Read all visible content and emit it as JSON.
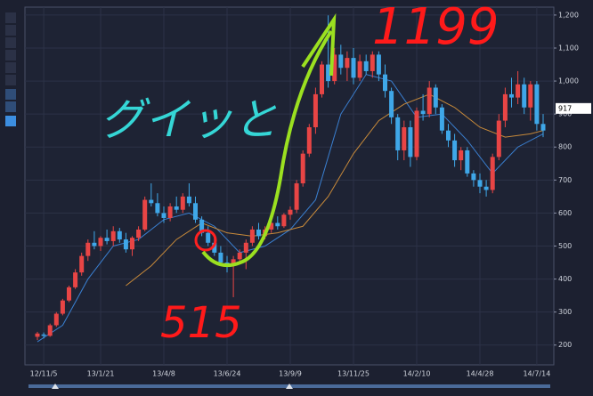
{
  "chart_data": {
    "type": "candlestick",
    "annotations": {
      "upper": "1199",
      "middle": "グイッと",
      "lower": "515"
    },
    "up_color": "#e84545",
    "down_color": "#3fa7e8",
    "ylim": [
      140,
      1224
    ],
    "yticks": [
      200,
      300,
      400,
      500,
      600,
      700,
      800,
      900,
      {
        "value": 1000,
        "label": "1,000"
      },
      {
        "value": 1100,
        "label": "1,100"
      },
      {
        "value": 1200,
        "label": "1,200"
      }
    ],
    "last_price": 917,
    "categories": [
      null,
      "12/11/5",
      null,
      null,
      null,
      null,
      null,
      null,
      null,
      null,
      "13/1/21",
      null,
      null,
      null,
      null,
      null,
      null,
      null,
      null,
      null,
      "13/4/8",
      null,
      null,
      null,
      null,
      null,
      null,
      null,
      null,
      null,
      "13/6/24",
      null,
      null,
      null,
      null,
      null,
      null,
      null,
      null,
      null,
      "13/9/9",
      null,
      null,
      null,
      null,
      null,
      null,
      null,
      null,
      null,
      "13/11/25",
      null,
      null,
      null,
      null,
      null,
      null,
      null,
      null,
      null,
      "14/2/10",
      null,
      null,
      null,
      null,
      null,
      null,
      null,
      null,
      null,
      "14/4/28",
      null,
      null,
      null,
      null,
      null,
      null,
      null,
      null,
      "14/7/14",
      null
    ],
    "ohlc": [
      [
        225,
        240,
        215,
        235
      ],
      [
        232,
        238,
        220,
        228
      ],
      [
        228,
        265,
        225,
        260
      ],
      [
        260,
        300,
        255,
        295
      ],
      [
        295,
        340,
        290,
        335
      ],
      [
        335,
        380,
        330,
        375
      ],
      [
        375,
        430,
        370,
        420
      ],
      [
        420,
        480,
        410,
        470
      ],
      [
        470,
        520,
        455,
        510
      ],
      [
        510,
        545,
        490,
        500
      ],
      [
        500,
        530,
        485,
        525
      ],
      [
        525,
        550,
        505,
        515
      ],
      [
        515,
        560,
        500,
        545
      ],
      [
        545,
        555,
        510,
        520
      ],
      [
        520,
        540,
        480,
        490
      ],
      [
        490,
        530,
        470,
        525
      ],
      [
        525,
        560,
        515,
        550
      ],
      [
        550,
        650,
        545,
        640
      ],
      [
        640,
        690,
        620,
        630
      ],
      [
        630,
        660,
        590,
        600
      ],
      [
        600,
        620,
        570,
        585
      ],
      [
        585,
        630,
        575,
        620
      ],
      [
        620,
        650,
        600,
        610
      ],
      [
        610,
        660,
        600,
        650
      ],
      [
        650,
        690,
        620,
        630
      ],
      [
        630,
        650,
        570,
        580
      ],
      [
        580,
        590,
        530,
        540
      ],
      [
        540,
        560,
        500,
        510
      ],
      [
        510,
        530,
        470,
        480
      ],
      [
        480,
        500,
        440,
        450
      ],
      [
        450,
        470,
        420,
        440
      ],
      [
        440,
        470,
        345,
        460
      ],
      [
        460,
        490,
        450,
        480
      ],
      [
        480,
        520,
        430,
        510
      ],
      [
        510,
        560,
        500,
        550
      ],
      [
        550,
        570,
        520,
        530
      ],
      [
        530,
        560,
        520,
        550
      ],
      [
        550,
        580,
        540,
        570
      ],
      [
        570,
        590,
        550,
        560
      ],
      [
        560,
        600,
        555,
        595
      ],
      [
        595,
        620,
        580,
        610
      ],
      [
        610,
        700,
        600,
        690
      ],
      [
        690,
        790,
        680,
        780
      ],
      [
        780,
        870,
        770,
        860
      ],
      [
        860,
        980,
        840,
        960
      ],
      [
        960,
        1060,
        950,
        1050
      ],
      [
        1050,
        1199,
        980,
        1000
      ],
      [
        1000,
        1100,
        990,
        1080
      ],
      [
        1080,
        1110,
        1020,
        1040
      ],
      [
        1040,
        1090,
        1000,
        1070
      ],
      [
        1070,
        1100,
        990,
        1010
      ],
      [
        1010,
        1080,
        1000,
        1060
      ],
      [
        1060,
        1080,
        1020,
        1030
      ],
      [
        1030,
        1090,
        1010,
        1080
      ],
      [
        1080,
        1090,
        1000,
        1020
      ],
      [
        1020,
        1050,
        950,
        970
      ],
      [
        970,
        980,
        870,
        890
      ],
      [
        890,
        900,
        760,
        790
      ],
      [
        790,
        880,
        760,
        860
      ],
      [
        860,
        880,
        740,
        770
      ],
      [
        770,
        920,
        760,
        910
      ],
      [
        910,
        960,
        880,
        900
      ],
      [
        900,
        1000,
        890,
        980
      ],
      [
        980,
        990,
        900,
        920
      ],
      [
        920,
        930,
        840,
        850
      ],
      [
        850,
        870,
        800,
        820
      ],
      [
        820,
        840,
        740,
        760
      ],
      [
        760,
        800,
        730,
        790
      ],
      [
        790,
        800,
        710,
        720
      ],
      [
        720,
        730,
        680,
        700
      ],
      [
        700,
        720,
        660,
        680
      ],
      [
        680,
        700,
        650,
        670
      ],
      [
        670,
        780,
        660,
        770
      ],
      [
        770,
        900,
        760,
        880
      ],
      [
        880,
        980,
        860,
        960
      ],
      [
        960,
        1010,
        920,
        950
      ],
      [
        950,
        1030,
        930,
        990
      ],
      [
        990,
        1010,
        900,
        920
      ],
      [
        920,
        1000,
        880,
        990
      ],
      [
        990,
        1000,
        850,
        870
      ],
      [
        870,
        900,
        830,
        850
      ]
    ],
    "moving_averages": [
      {
        "color": "#3a7fd0",
        "x": [
          0,
          4,
          8,
          12,
          16,
          20,
          24,
          28,
          32,
          36,
          40,
          44,
          48,
          52,
          56,
          60,
          64,
          68,
          72,
          76,
          80
        ],
        "values": [
          210,
          260,
          400,
          500,
          520,
          580,
          600,
          560,
          480,
          500,
          550,
          640,
          900,
          1020,
          1000,
          890,
          900,
          820,
          720,
          800,
          840
        ]
      },
      {
        "color": "#c88a3a",
        "x": [
          14,
          18,
          22,
          26,
          30,
          34,
          38,
          42,
          46,
          50,
          54,
          58,
          62,
          66,
          70,
          74,
          78,
          80
        ],
        "values": [
          380,
          440,
          520,
          570,
          540,
          530,
          540,
          560,
          650,
          780,
          880,
          930,
          960,
          920,
          860,
          830,
          840,
          850
        ]
      }
    ]
  }
}
